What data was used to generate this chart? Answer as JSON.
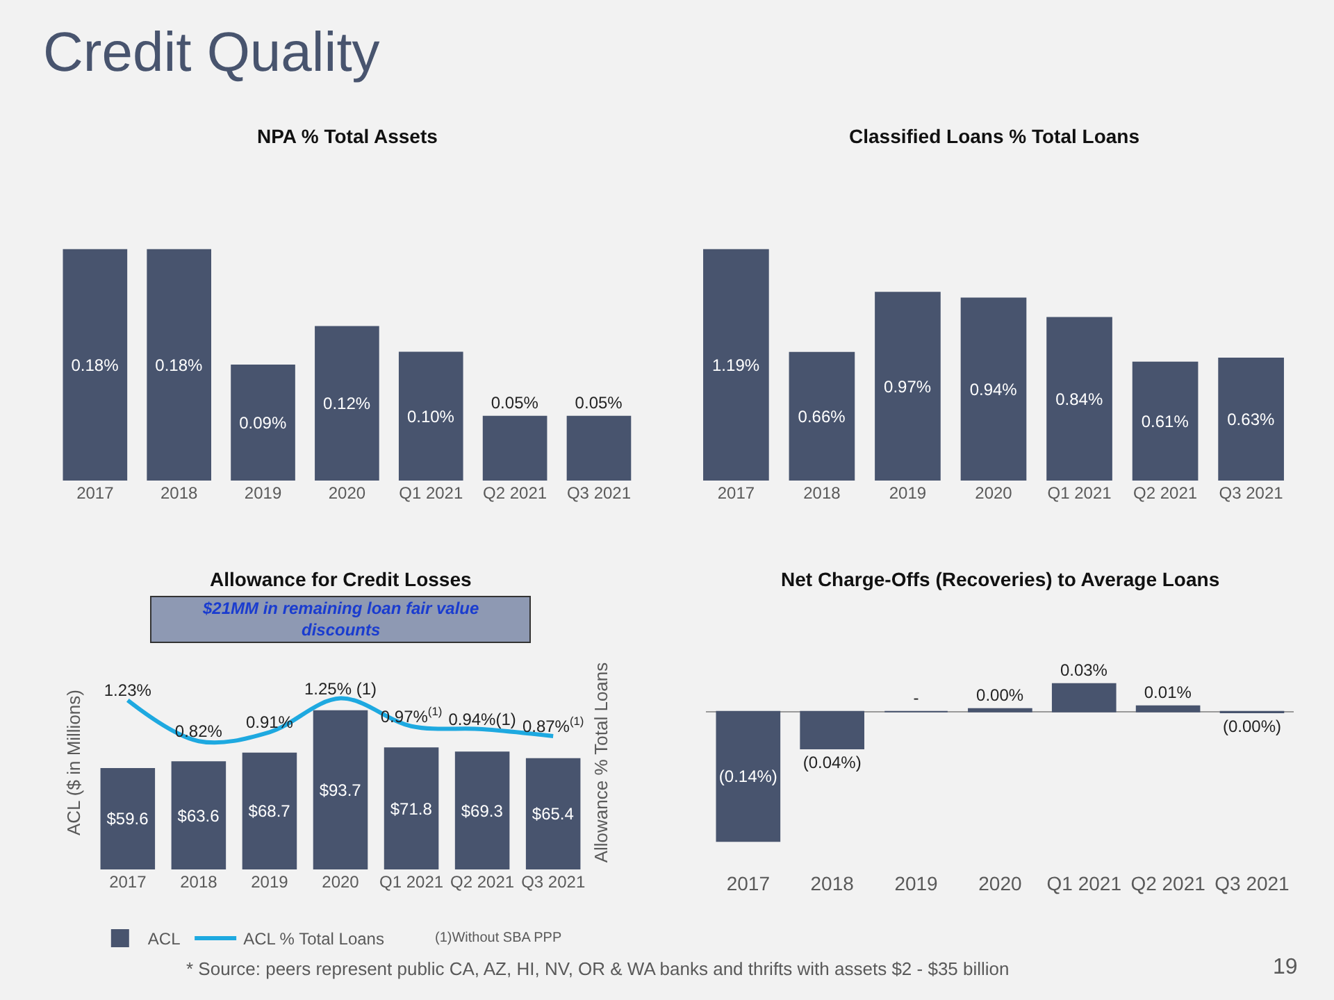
{
  "chart_data": [
    {
      "type": "other",
      "title": "Credit Quality",
      "annotations": [
        "* Source: peers represent public CA, AZ, HI, NV, OR & WA banks and thrifts with assets $2 - $35 billion",
        "19"
      ]
    },
    {
      "type": "bar",
      "title": "NPA % Total Assets",
      "categories": [
        "2017",
        "2018",
        "2019",
        "2020",
        "Q1 2021",
        "Q2 2021",
        "Q3 2021"
      ],
      "tick_labels": "x",
      "grid": false,
      "legend": false,
      "series": [
        {
          "color": "#48546e",
          "values": [
            0.18,
            0.18,
            0.09,
            0.12,
            0.1,
            0.05,
            0.05
          ],
          "value_labels": [
            "0.18%",
            "0.18%",
            "0.09%",
            "0.12%",
            "0.10%",
            "0.05%",
            "0.05%"
          ]
        }
      ]
    },
    {
      "type": "bar",
      "title": "Classified Loans % Total Loans",
      "categories": [
        "2017",
        "2018",
        "2019",
        "2020",
        "Q1 2021",
        "Q2 2021",
        "Q3 2021"
      ],
      "tick_labels": "x",
      "grid": false,
      "legend": false,
      "series": [
        {
          "color": "#48546e",
          "values": [
            1.19,
            0.66,
            0.97,
            0.94,
            0.84,
            0.61,
            0.63
          ],
          "value_labels": [
            "1.19%",
            "0.66%",
            "0.97%",
            "0.94%",
            "0.84%",
            "0.61%",
            "0.63%"
          ]
        }
      ]
    },
    {
      "type": "bar",
      "title": "Allowance for Credit Losses",
      "ylabel": "ACL ($ in Millions)",
      "y2label": "Allowance % Total Loans",
      "categories": [
        "2017",
        "2018",
        "2019",
        "2020",
        "Q1 2021",
        "Q2 2021",
        "Q3 2021"
      ],
      "tick_labels": "x",
      "grid": false,
      "legend": "bottom",
      "annotations": [
        "$21MM in remaining loan fair value discounts",
        "(1)Without SBA PPP"
      ],
      "series": [
        {
          "name": "ACL",
          "type": "bar",
          "color": "#48546e",
          "values": [
            59.6,
            63.6,
            68.7,
            93.7,
            71.8,
            69.3,
            65.4
          ],
          "value_labels": [
            "$59.6",
            "$63.6",
            "$68.7",
            "$93.7",
            "$71.8",
            "$69.3",
            "$65.4"
          ]
        },
        {
          "name": "ACL % Total Loans",
          "type": "line",
          "axis": "y2",
          "color": "#1ea9e0",
          "values": [
            1.23,
            0.82,
            0.91,
            1.25,
            0.97,
            0.94,
            0.87
          ],
          "value_labels": [
            "1.23%",
            "0.82%",
            "0.91%",
            "1.25% (1)",
            "0.97%$^{(1)}$",
            "0.94%(1)",
            "0.87%$^{(1)}$"
          ]
        }
      ]
    },
    {
      "type": "bar",
      "title": "Net Charge-Offs (Recoveries) to Average Loans",
      "categories": [
        "2017",
        "2018",
        "2019",
        "2020",
        "Q1 2021",
        "Q2 2021",
        "Q3 2021"
      ],
      "tick_labels": "x",
      "grid": false,
      "legend": false,
      "series": [
        {
          "color": "#48546e",
          "values": [
            -0.14,
            -0.04,
            0,
            0.003,
            0.03,
            0.006,
            -0.001
          ],
          "value_labels": [
            "(0.14%)",
            "(0.04%)",
            "-",
            "0.00%",
            "0.03%",
            "0.01%",
            "(0.00%)"
          ]
        }
      ]
    }
  ]
}
